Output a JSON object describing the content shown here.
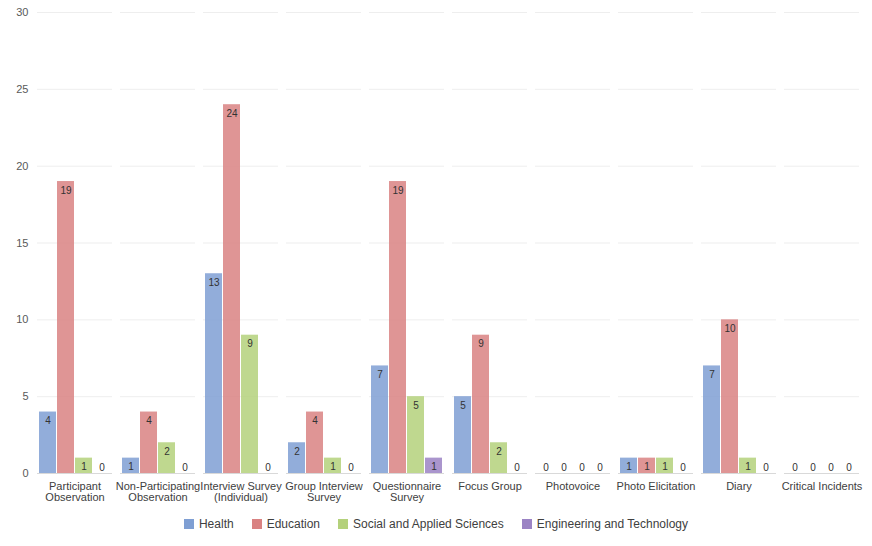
{
  "chart_data": {
    "type": "bar",
    "categories": [
      "Participant Observation",
      "Non-Participating Observation",
      "Interview Survey (Individual)",
      "Group Interview Survey",
      "Questionnaire Survey",
      "Focus Group",
      "Photovoice",
      "Photo Elicitation",
      "Diary",
      "Critical Incidents"
    ],
    "series": [
      {
        "name": "Health",
        "color": "#7f9fd3",
        "values": [
          4,
          1,
          13,
          2,
          7,
          5,
          0,
          1,
          7,
          0
        ]
      },
      {
        "name": "Education",
        "color": "#d98282",
        "values": [
          19,
          4,
          24,
          4,
          19,
          9,
          0,
          1,
          10,
          0
        ]
      },
      {
        "name": "Social and Applied Sciences",
        "color": "#b4d17b",
        "values": [
          1,
          2,
          9,
          1,
          5,
          2,
          0,
          1,
          1,
          0
        ]
      },
      {
        "name": "Engineering and Technology",
        "color": "#9b83c4",
        "values": [
          0,
          0,
          0,
          0,
          1,
          0,
          0,
          0,
          0,
          0
        ]
      }
    ],
    "ylim": [
      0,
      30
    ],
    "yticks": [
      0,
      5,
      10,
      15,
      20,
      25,
      30
    ],
    "grid": true,
    "data_labels": true,
    "legend": "bottom"
  }
}
